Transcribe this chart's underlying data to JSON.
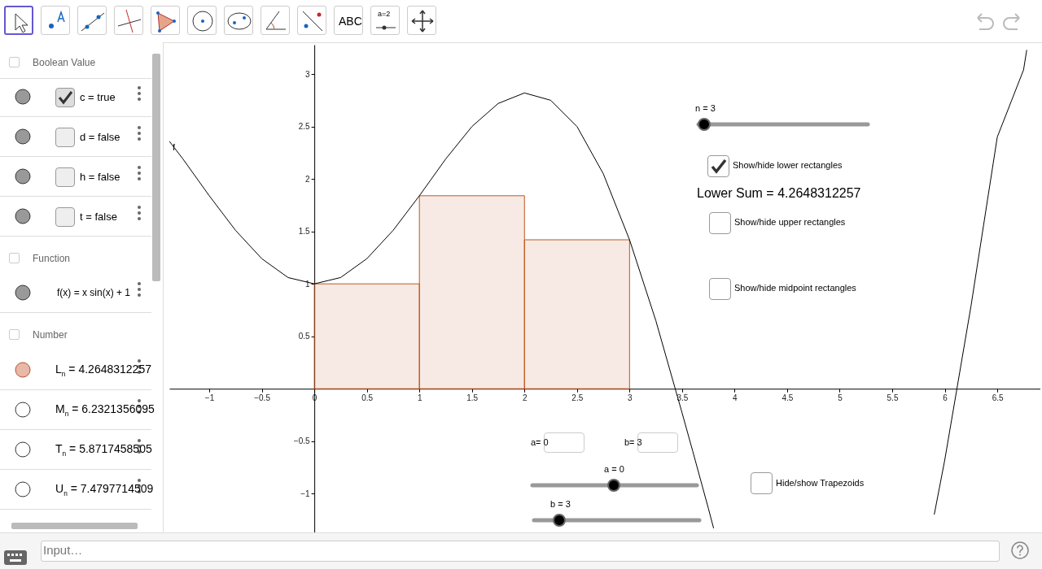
{
  "chart_data": {
    "type": "line",
    "xlim": [
      -1.38,
      6.91
    ],
    "ylim": [
      -1.37,
      3.28
    ],
    "xticks": [
      -1,
      -0.5,
      0,
      0.5,
      1,
      1.5,
      2,
      2.5,
      3,
      3.5,
      4,
      4.5,
      5,
      5.5,
      6,
      6.5
    ],
    "yticks": [
      -1,
      -0.5,
      0.5,
      1,
      1.5,
      2,
      2.5,
      3
    ],
    "grid": false,
    "series": [
      {
        "name": "f",
        "color": "#000000",
        "x": [
          -1.38,
          -1.25,
          -1,
          -0.75,
          -0.5,
          -0.25,
          0,
          0.25,
          0.5,
          0.75,
          1,
          1.25,
          1.5,
          1.75,
          2,
          2.25,
          2.5,
          2.75,
          3,
          3.25,
          3.5,
          3.6,
          3.75,
          3.8,
          4.5,
          5.9,
          6,
          6.25,
          6.5,
          6.75,
          6.78
        ],
        "values": [
          2.36,
          2.19,
          1.84,
          1.51,
          1.24,
          1.06,
          1,
          1.06,
          1.24,
          1.51,
          1.84,
          2.19,
          2.5,
          2.72,
          2.82,
          2.75,
          2.5,
          2.05,
          1.42,
          0.65,
          -0.23,
          -0.59,
          -1.14,
          -1.33,
          null,
          -1.2,
          -0.68,
          0.79,
          2.4,
          3.04,
          3.23
        ]
      },
      {
        "type": "bar",
        "color": "#c0561f",
        "x": [
          0.5,
          1.5,
          2.5
        ],
        "values": [
          1,
          1.84,
          1.42
        ]
      }
    ],
    "annotations": [
      "Boolean Value",
      "c = true",
      "d = false",
      "h = false",
      "t = false",
      "Function",
      "f(x) = x sin(x) + 1",
      "Number",
      "L$_{n}$ = 4.2648312257",
      "M$_{n}$ = 6.2321356095",
      "T$_{n}$ = 5.8717458505",
      "U$_{n}$ = 7.4797714509",
      "n = 3",
      "Show/hide lower rectangles",
      "Lower Sum = 4.2648312257",
      "Show/hide upper rectangles",
      "Show/hide midpoint rectangles",
      "a= 0",
      "b= 3",
      "a = 0",
      "b = 3",
      "Hide/show Trapezoids",
      "ABC",
      "a=2",
      "Input…"
    ]
  }
}
